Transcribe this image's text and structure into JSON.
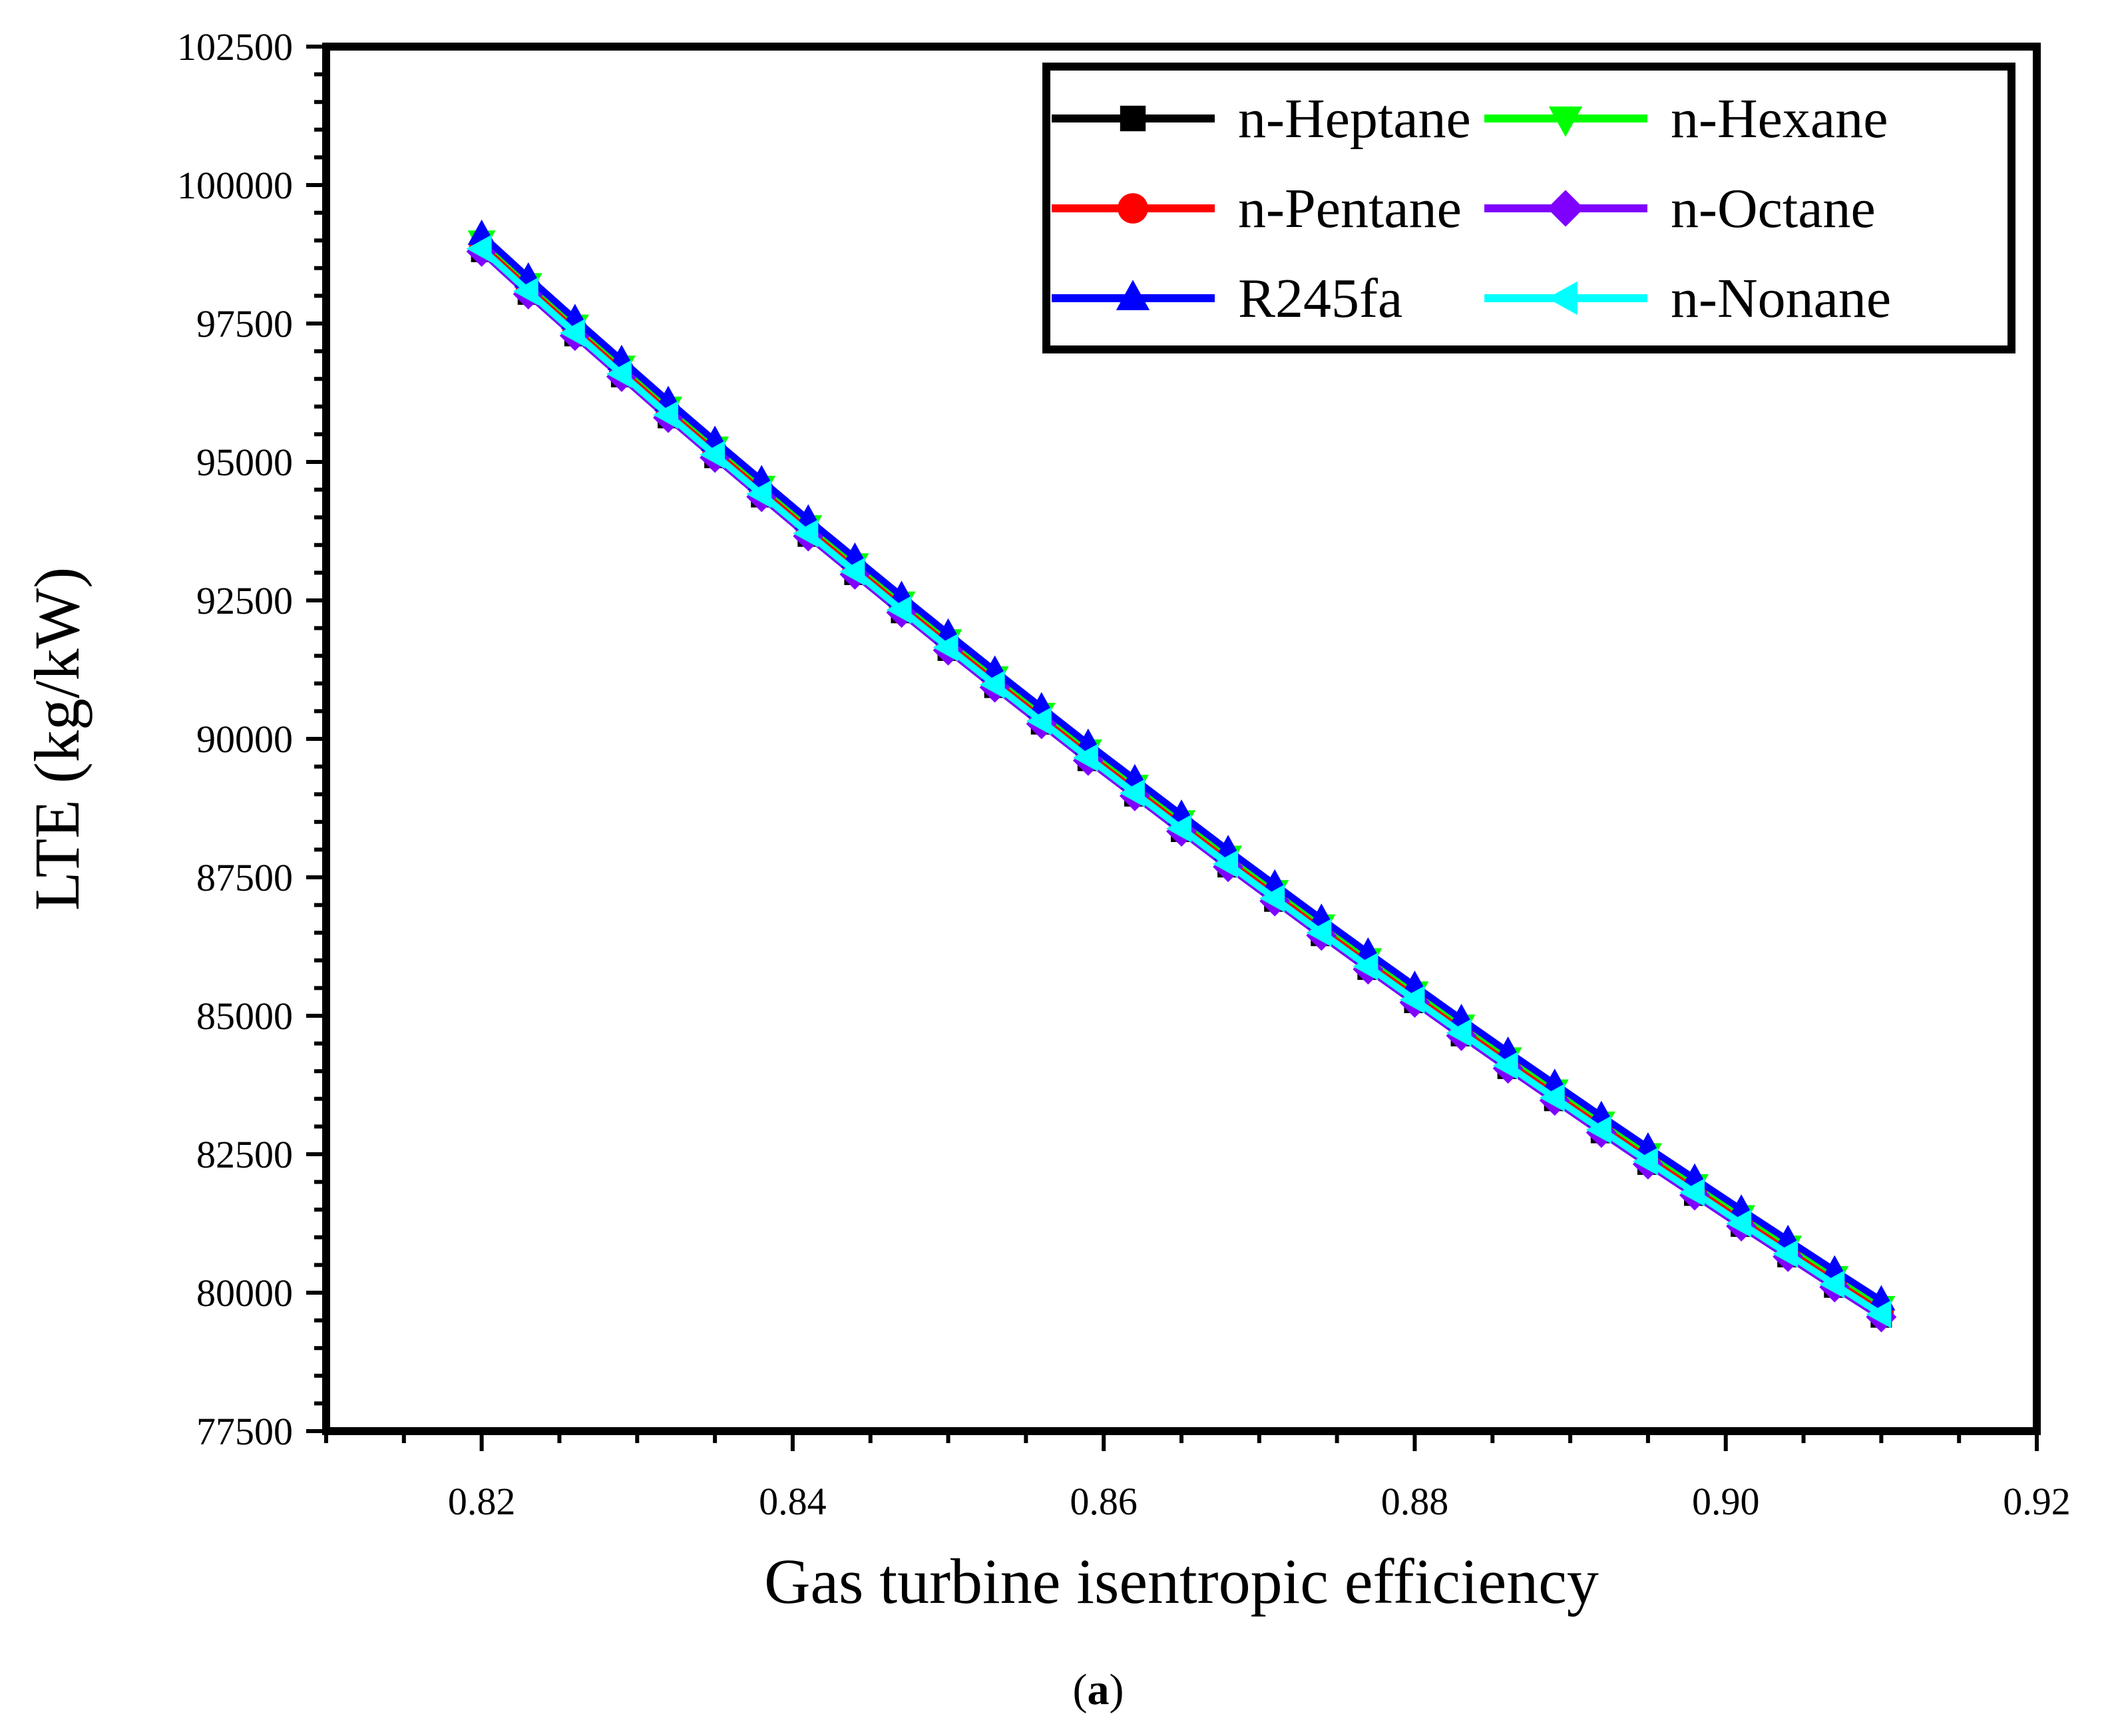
{
  "chart_data": {
    "type": "line",
    "title": "",
    "xlabel": "Gas turbine isentropic efficiency",
    "ylabel": "LTE (kg/kW)",
    "xlim": [
      0.81,
      0.92
    ],
    "ylim": [
      77500,
      102500
    ],
    "xticks": [
      0.82,
      0.84,
      0.86,
      0.88,
      0.9,
      0.92
    ],
    "xtick_labels": [
      "0.82",
      "0.84",
      "0.86",
      "0.88",
      "0.90",
      "0.92"
    ],
    "yticks": [
      77500,
      80000,
      82500,
      85000,
      87500,
      90000,
      92500,
      95000,
      97500,
      100000,
      102500
    ],
    "ytick_labels": [
      "77500",
      "80000",
      "82500",
      "85000",
      "87500",
      "90000",
      "92500",
      "95000",
      "97500",
      "100000",
      "102500"
    ],
    "grid": false,
    "legend_position": "top-right",
    "x": [
      0.82,
      0.823,
      0.826,
      0.829,
      0.832,
      0.835,
      0.838,
      0.841,
      0.844,
      0.847,
      0.85,
      0.853,
      0.856,
      0.859,
      0.862,
      0.865,
      0.868,
      0.871,
      0.874,
      0.877,
      0.88,
      0.883,
      0.886,
      0.889,
      0.892,
      0.895,
      0.898,
      0.901,
      0.904,
      0.907,
      0.91
    ],
    "series": [
      {
        "name": "n-Heptane",
        "color": "#000000",
        "marker": "square",
        "values": [
          98800,
          98030,
          97280,
          96540,
          95800,
          95080,
          94370,
          93660,
          92970,
          92280,
          91600,
          90930,
          90270,
          89610,
          88970,
          88330,
          87690,
          87070,
          86450,
          85840,
          85240,
          84640,
          84050,
          83470,
          82890,
          82320,
          81760,
          81200,
          80650,
          80100,
          79560
        ]
      },
      {
        "name": "n-Hexane",
        "color": "#00ff00",
        "marker": "triangle-down",
        "values": [
          99000,
          98230,
          97480,
          96740,
          96000,
          95280,
          94570,
          93860,
          93170,
          92480,
          91800,
          91130,
          90470,
          89810,
          89170,
          88530,
          87890,
          87270,
          86650,
          86040,
          85440,
          84840,
          84250,
          83670,
          83090,
          82520,
          81960,
          81400,
          80850,
          80300,
          79760
        ]
      },
      {
        "name": "n-Pentane",
        "color": "#ff0000",
        "marker": "circle",
        "values": [
          98900,
          98130,
          97380,
          96640,
          95900,
          95180,
          94470,
          93760,
          93070,
          92380,
          91700,
          91030,
          90370,
          89710,
          89070,
          88430,
          87790,
          87170,
          86550,
          85940,
          85340,
          84740,
          84150,
          83570,
          82990,
          82420,
          81860,
          81300,
          80750,
          80200,
          79660
        ]
      },
      {
        "name": "n-Octane",
        "color": "#7f00ff",
        "marker": "diamond",
        "values": [
          98800,
          98030,
          97280,
          96540,
          95800,
          95080,
          94370,
          93660,
          92970,
          92280,
          91600,
          90930,
          90270,
          89610,
          88970,
          88330,
          87690,
          87070,
          86450,
          85840,
          85240,
          84640,
          84050,
          83470,
          82890,
          82320,
          81760,
          81200,
          80650,
          80100,
          79560
        ]
      },
      {
        "name": "R245fa",
        "color": "#0000ff",
        "marker": "triangle-up",
        "values": [
          99100,
          98330,
          97580,
          96840,
          96100,
          95380,
          94670,
          93960,
          93270,
          92580,
          91900,
          91230,
          90570,
          89910,
          89270,
          88630,
          87990,
          87370,
          86750,
          86140,
          85540,
          84940,
          84350,
          83770,
          83190,
          82620,
          82060,
          81500,
          80950,
          80400,
          79860
        ]
      },
      {
        "name": "n-Nonane",
        "color": "#00ffff",
        "marker": "triangle-left",
        "values": [
          98850,
          98080,
          97330,
          96590,
          95850,
          95130,
          94420,
          93710,
          93020,
          92330,
          91650,
          90980,
          90320,
          89660,
          89020,
          88380,
          87740,
          87120,
          86500,
          85890,
          85290,
          84690,
          84100,
          83520,
          82940,
          82370,
          81810,
          81250,
          80700,
          80150,
          79610
        ]
      }
    ],
    "draw_order": [
      0,
      1,
      2,
      3,
      4,
      5
    ]
  },
  "caption": {
    "open": "(",
    "label": "a",
    "close": ")"
  }
}
